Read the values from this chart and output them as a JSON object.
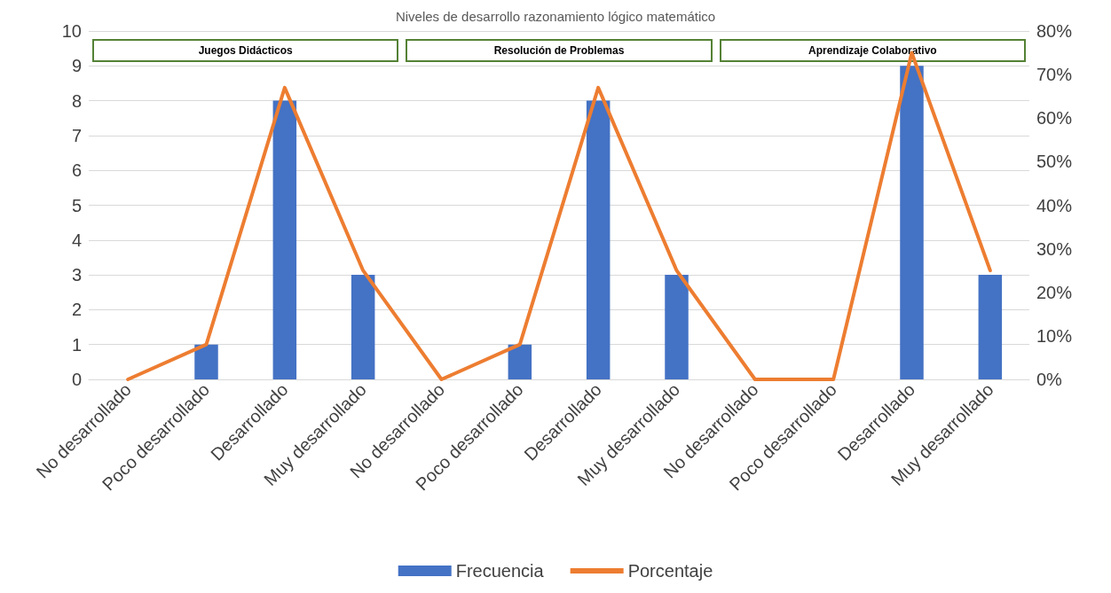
{
  "chart_data": {
    "type": "bar",
    "title": "Niveles de desarrollo razonamiento lógico matemático",
    "categories": [
      "No desarrollado",
      "Poco desarrollado",
      "Desarrollado",
      "Muy desarrollado",
      "No desarrollado",
      "Poco desarrollado",
      "Desarrollado",
      "Muy desarrollado",
      "No desarrollado",
      "Poco desarrollado",
      "Desarrollado",
      "Muy desarrollado"
    ],
    "series": [
      {
        "name": "Frecuencia",
        "color": "#4472c4",
        "values": [
          0,
          1,
          8,
          3,
          0,
          1,
          8,
          3,
          0,
          0,
          9,
          3
        ]
      },
      {
        "name": "Porcentaje",
        "type": "line",
        "axis": "y2",
        "color": "#ed7d31",
        "values": [
          0,
          8,
          67,
          25,
          0,
          8,
          67,
          25,
          0,
          0,
          75,
          25
        ]
      }
    ],
    "ylim": [
      0,
      10
    ],
    "yticks": [
      0,
      1,
      2,
      3,
      4,
      5,
      6,
      7,
      8,
      9,
      10
    ],
    "y2lim": [
      0,
      80
    ],
    "y2ticks": [
      {
        "value": 0,
        "label": "0%"
      },
      {
        "value": 10,
        "label": "10%"
      },
      {
        "value": 20,
        "label": "20%"
      },
      {
        "value": 30,
        "label": "30%"
      },
      {
        "value": 40,
        "label": "40%"
      },
      {
        "value": 50,
        "label": "50%"
      },
      {
        "value": 60,
        "label": "60%"
      },
      {
        "value": 70,
        "label": "70%"
      },
      {
        "value": 80,
        "label": "80%"
      }
    ],
    "annotations": [
      "Juegos Didácticos",
      "Resolución de Problemas",
      "Aprendizaje Colaborativo"
    ],
    "grid": "y",
    "legend": "bottom",
    "marker": "none",
    "line_style": "solid"
  }
}
